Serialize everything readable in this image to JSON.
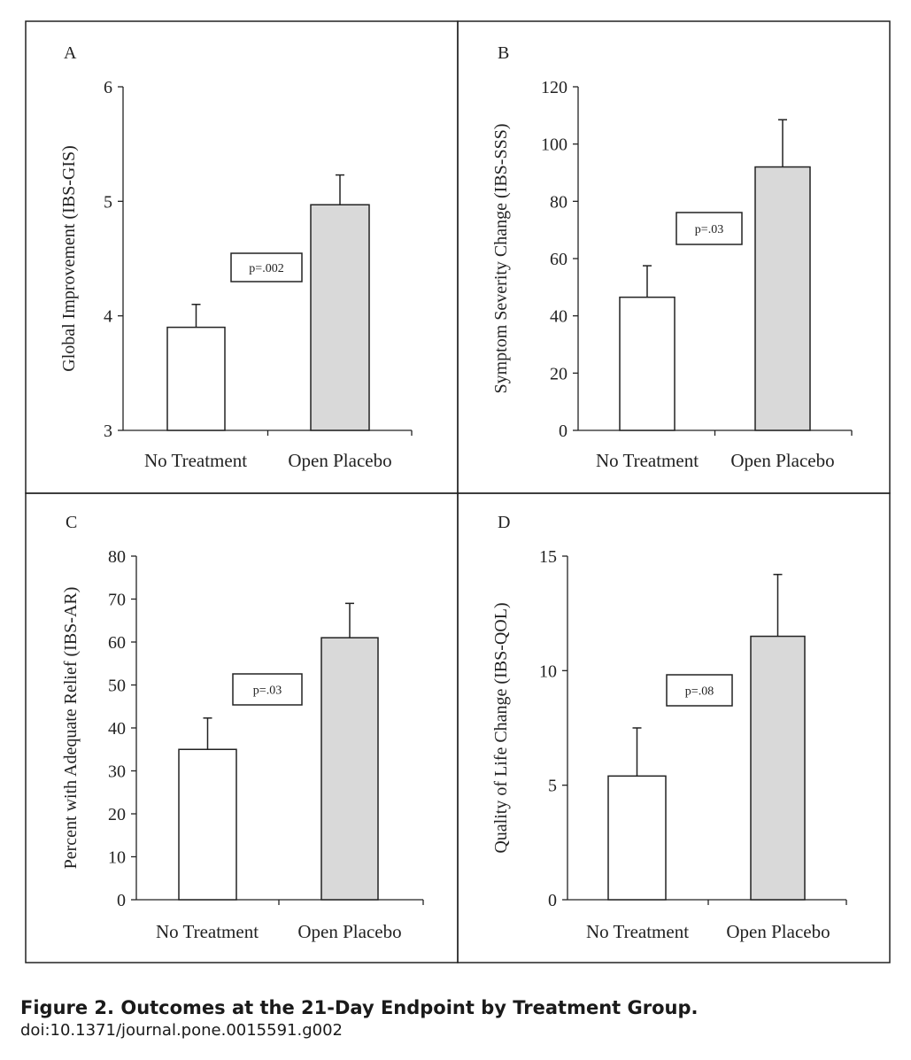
{
  "caption": {
    "title": "Figure 2. Outcomes at the 21-Day Endpoint by Treatment Group.",
    "doi": "doi:10.1371/journal.pone.0015591.g002"
  },
  "colors": {
    "no_treatment_fill": "#ffffff",
    "open_placebo_fill": "#d9d9d9",
    "line": "#222222"
  },
  "chart_data": [
    {
      "type": "bar",
      "panel": "A",
      "categories": [
        "No Treatment",
        "Open Placebo"
      ],
      "values": [
        3.9,
        4.97
      ],
      "error_upper": [
        4.1,
        5.23
      ],
      "ylabel": "Global Improvement (IBS-GIS)",
      "ylim": [
        3,
        6
      ],
      "yticks": [
        3,
        4,
        5,
        6
      ],
      "annotation": "p=.002",
      "annotation_position": "center"
    },
    {
      "type": "bar",
      "panel": "B",
      "categories": [
        "No Treatment",
        "Open Placebo"
      ],
      "values": [
        46.5,
        92
      ],
      "error_upper": [
        57.5,
        108.5
      ],
      "ylabel": "Symptom Severity Change (IBS-SSS)",
      "ylim": [
        0,
        120
      ],
      "yticks": [
        0,
        20,
        40,
        60,
        80,
        100,
        120
      ],
      "annotation": "p=.03",
      "annotation_position": "center"
    },
    {
      "type": "bar",
      "panel": "C",
      "categories": [
        "No Treatment",
        "Open Placebo"
      ],
      "values": [
        35,
        61
      ],
      "error_upper": [
        42.3,
        69
      ],
      "ylabel": "Percent with Adequate Relief (IBS-AR)",
      "ylim": [
        0,
        80
      ],
      "yticks": [
        0,
        10,
        20,
        30,
        40,
        50,
        60,
        70,
        80
      ],
      "annotation": "p=.03",
      "annotation_position": "center"
    },
    {
      "type": "bar",
      "panel": "D",
      "categories": [
        "No Treatment",
        "Open Placebo"
      ],
      "values": [
        5.4,
        11.5
      ],
      "error_upper": [
        7.5,
        14.2
      ],
      "ylabel": "Quality of Life Change (IBS-QOL)",
      "ylim": [
        0,
        15
      ],
      "yticks": [
        0,
        5,
        10,
        15
      ],
      "annotation": "p=.08",
      "annotation_position": "center"
    }
  ]
}
